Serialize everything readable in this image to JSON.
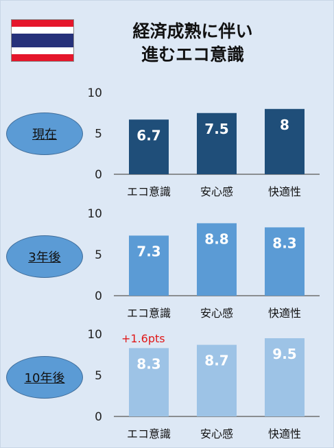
{
  "title_lines": [
    "経済成熟に伴い",
    "進むエコ意識"
  ],
  "flag": {
    "icon": "thailand-flag-icon",
    "colors": {
      "red": "#e5162b",
      "white": "#ffffff",
      "blue": "#26317a"
    }
  },
  "panel_labels": [
    "現在",
    "3年後",
    "10年後"
  ],
  "annotation": "+1.6pts",
  "chart_data": [
    {
      "type": "bar",
      "period": "現在",
      "categories": [
        "エコ意識",
        "安心感",
        "快適性"
      ],
      "values": [
        6.7,
        7.5,
        8
      ],
      "value_labels": [
        "6.7",
        "7.5",
        "8"
      ],
      "yticks": [
        "0",
        "5",
        "10"
      ],
      "ylim": [
        0,
        10
      ],
      "color": "#1f4e79"
    },
    {
      "type": "bar",
      "period": "3年後",
      "categories": [
        "エコ意識",
        "安心感",
        "快適性"
      ],
      "values": [
        7.3,
        8.8,
        8.3
      ],
      "value_labels": [
        "7.3",
        "8.8",
        "8.3"
      ],
      "yticks": [
        "0",
        "5",
        "10"
      ],
      "ylim": [
        0,
        10
      ],
      "color": "#5b9bd5"
    },
    {
      "type": "bar",
      "period": "10年後",
      "categories": [
        "エコ意識",
        "安心感",
        "快適性"
      ],
      "values": [
        8.3,
        8.7,
        9.5
      ],
      "value_labels": [
        "8.3",
        "8.7",
        "9.5"
      ],
      "yticks": [
        "0",
        "5",
        "10"
      ],
      "ylim": [
        0,
        10
      ],
      "color": "#9dc3e6",
      "annotation": "+1.6pts"
    }
  ]
}
